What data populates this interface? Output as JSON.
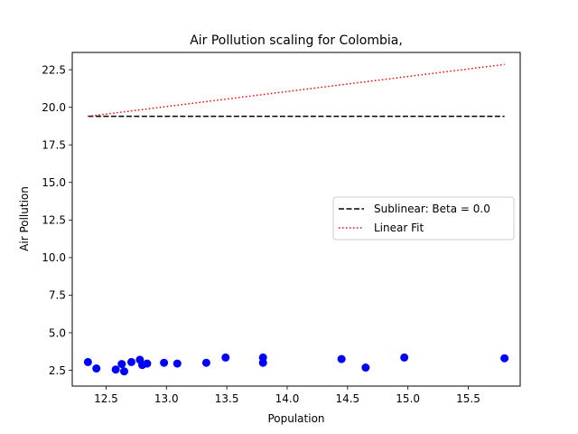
{
  "chart_data": {
    "type": "scatter",
    "title": "Air Pollution scaling for Colombia,",
    "xlabel": "Population",
    "ylabel": "Air Pollution",
    "xlim": [
      12.22,
      15.93
    ],
    "ylim": [
      1.45,
      23.65
    ],
    "xticks": [
      "12.5",
      "13.0",
      "13.5",
      "14.0",
      "14.5",
      "15.0",
      "15.5"
    ],
    "yticks": [
      "2.5",
      "5.0",
      "7.5",
      "10.0",
      "12.5",
      "15.0",
      "17.5",
      "20.0",
      "22.5"
    ],
    "grid": false,
    "legend_position": "center-right",
    "points": {
      "color": "#0000ff",
      "x": [
        12.35,
        12.42,
        12.58,
        12.63,
        12.65,
        12.71,
        12.78,
        12.8,
        12.84,
        12.98,
        13.09,
        13.33,
        13.49,
        13.8,
        13.8,
        14.45,
        14.65,
        14.97,
        15.8
      ],
      "y": [
        3.05,
        2.62,
        2.55,
        2.92,
        2.43,
        3.05,
        3.2,
        2.85,
        2.95,
        3.0,
        2.95,
        3.0,
        3.35,
        3.35,
        3.0,
        3.25,
        2.68,
        3.35,
        3.3
      ]
    },
    "series": [
      {
        "name": "Sublinear: Beta = 0.0",
        "style": "dashed",
        "color": "#000000",
        "x": [
          12.35,
          15.8
        ],
        "y": [
          19.4,
          19.4
        ]
      },
      {
        "name": "Linear Fit",
        "style": "dotted",
        "color": "#ff0000",
        "x": [
          12.35,
          15.8
        ],
        "y": [
          19.4,
          22.85
        ]
      }
    ]
  }
}
